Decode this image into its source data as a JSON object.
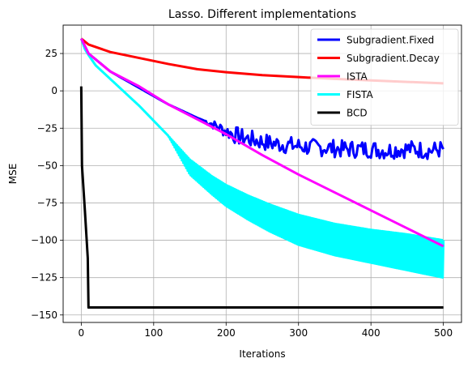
{
  "chart_data": {
    "type": "line",
    "title": "Lasso. Different implementations",
    "xlabel": "Iterations",
    "ylabel": "MSE",
    "xlim": [
      -25,
      525
    ],
    "ylim": [
      -155,
      44
    ],
    "xticks": [
      0,
      100,
      200,
      300,
      400,
      500
    ],
    "yticks": [
      25,
      0,
      -25,
      -50,
      -75,
      -100,
      -125,
      -150
    ],
    "grid": true,
    "legend_position": "top-right",
    "series": [
      {
        "name": "Subgradient.Fixed",
        "color": "#0000ff",
        "x": [
          0,
          10,
          40,
          80,
          120,
          160,
          180,
          200,
          220,
          240,
          260,
          280,
          300,
          320,
          340,
          360,
          380,
          400,
          420,
          440,
          460,
          480,
          500
        ],
        "y": [
          35,
          25,
          13,
          2,
          -9,
          -18,
          -22,
          -27,
          -31,
          -33,
          -35,
          -36,
          -37,
          -38,
          -38,
          -39,
          -39,
          -39,
          -40,
          -39,
          -39,
          -40,
          -39
        ],
        "noise_start": 170,
        "noise_amplitude": 6
      },
      {
        "name": "Subgradient.Decay",
        "color": "#ff0000",
        "x": [
          0,
          10,
          40,
          80,
          120,
          160,
          200,
          250,
          300,
          350,
          400,
          450,
          500
        ],
        "y": [
          35,
          31,
          26,
          22,
          18,
          14.5,
          12.5,
          10.5,
          9.2,
          8,
          7,
          6,
          5
        ]
      },
      {
        "name": "ISTA",
        "color": "#ff00ff",
        "x": [
          0,
          10,
          40,
          80,
          120,
          160,
          200,
          250,
          300,
          350,
          400,
          450,
          500
        ],
        "y": [
          35,
          25,
          13,
          3,
          -9,
          -19,
          -29,
          -43,
          -56,
          -68,
          -80,
          -92,
          -104
        ]
      },
      {
        "name": "FISTA",
        "color": "#00ffff",
        "x": [
          0,
          5,
          10,
          20,
          40,
          80,
          120,
          150,
          180,
          200,
          230,
          260,
          300,
          350,
          400,
          450,
          500
        ],
        "upper": [
          35,
          28,
          24,
          17,
          8,
          -10,
          -30,
          -46,
          -57,
          -63,
          -70,
          -76,
          -83,
          -89,
          -93,
          -96,
          -100
        ],
        "lower": [
          35,
          28,
          24,
          17,
          8,
          -10,
          -30,
          -56,
          -69,
          -77,
          -86,
          -94,
          -103,
          -110,
          -115,
          -120,
          -125
        ]
      },
      {
        "name": "BCD",
        "color": "#000000",
        "x": [
          0,
          1,
          5,
          9,
          10,
          20,
          100,
          200,
          300,
          400,
          500
        ],
        "y": [
          3,
          -50,
          -80,
          -112,
          -145,
          -145,
          -145,
          -145,
          -145,
          -145,
          -145
        ]
      }
    ]
  }
}
